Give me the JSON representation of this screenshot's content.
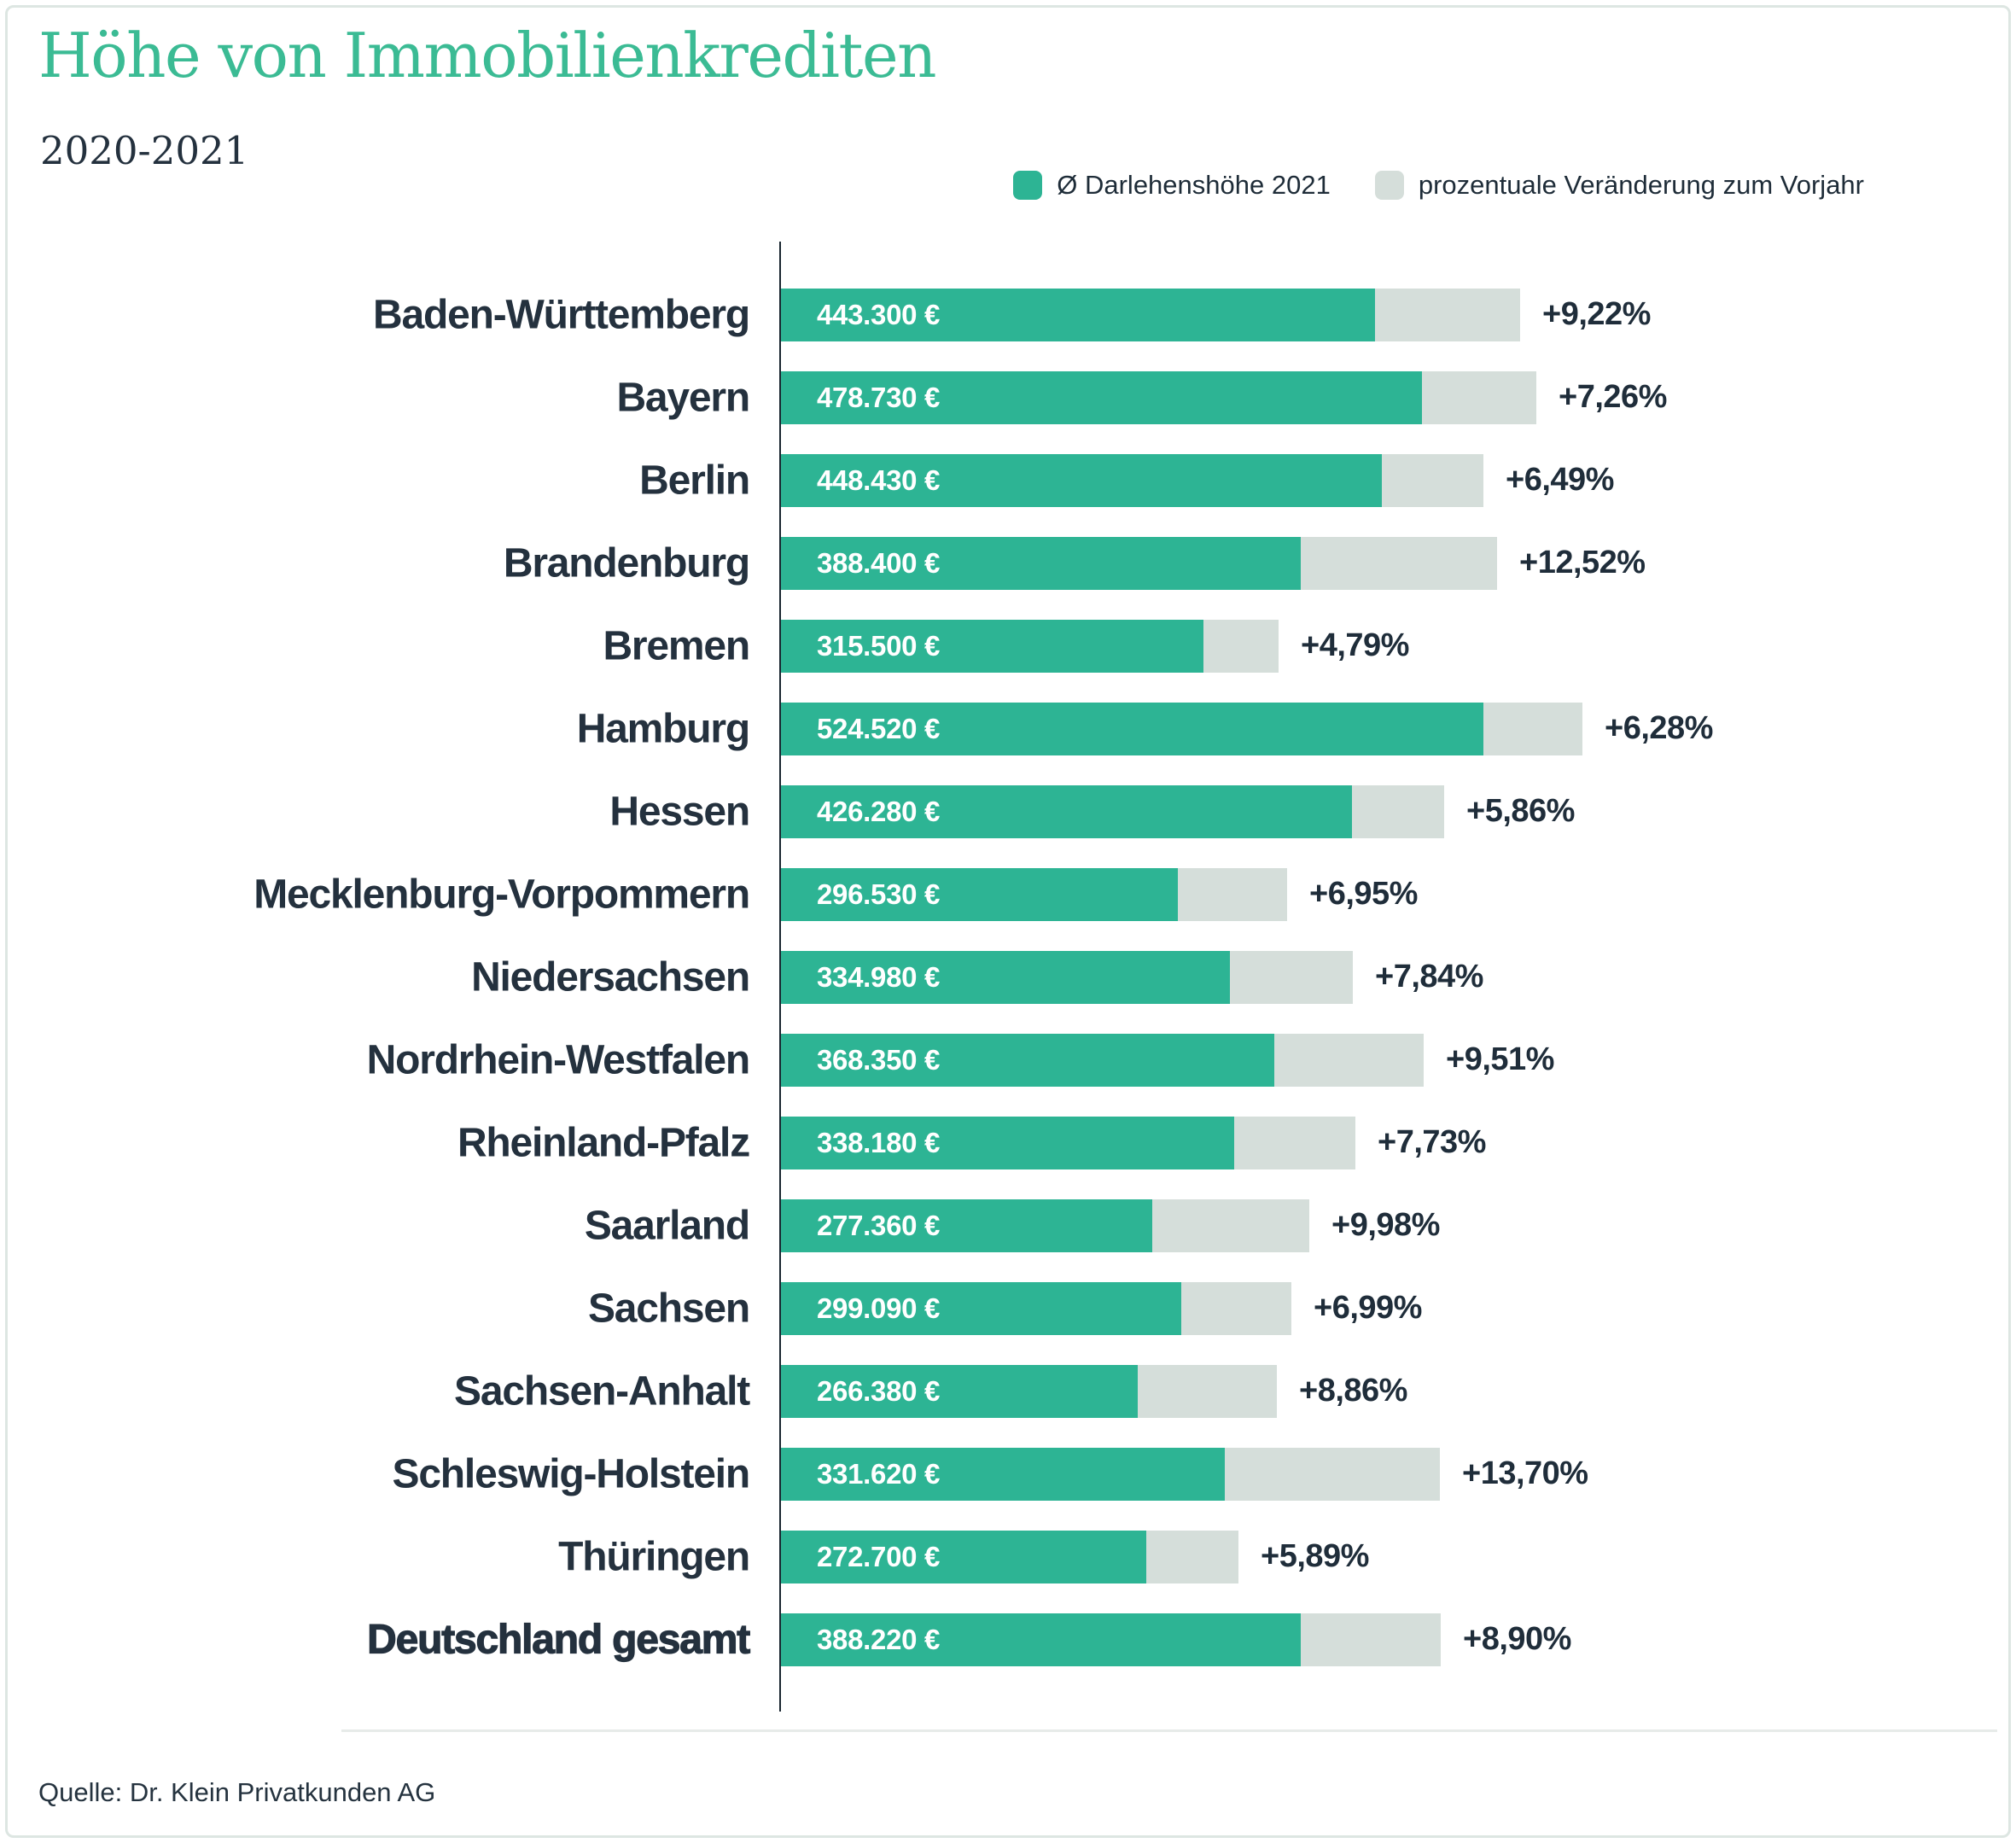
{
  "header": {
    "title": "Höhe von Immobilienkrediten",
    "subtitle": "2020-2021"
  },
  "legend": {
    "items": [
      {
        "label": "Ø Darlehenshöhe 2021",
        "color": "#2DB494"
      },
      {
        "label": "prozentuale Veränderung zum Vorjahr",
        "color": "#D5DEDA"
      }
    ]
  },
  "chart_data": {
    "type": "bar",
    "orientation": "horizontal",
    "title": "Höhe von Immobilienkrediten",
    "subtitle": "2020-2021",
    "legend_position": "top-right",
    "grid": false,
    "categories": [
      "Baden-Württemberg",
      "Bayern",
      "Berlin",
      "Brandenburg",
      "Bremen",
      "Hamburg",
      "Hessen",
      "Mecklenburg-Vorpommern",
      "Niedersachsen",
      "Nordrhein-Westfalen",
      "Rheinland-Pfalz",
      "Saarland",
      "Sachsen",
      "Sachsen-Anhalt",
      "Schleswig-Holstein",
      "Thüringen",
      "Deutschland gesamt"
    ],
    "series": [
      {
        "name": "Ø Darlehenshöhe 2021",
        "unit": "EUR",
        "values": [
          443300,
          478730,
          448430,
          388400,
          315500,
          524520,
          426280,
          296530,
          334980,
          368350,
          338180,
          277360,
          299090,
          266380,
          331620,
          272700,
          388220
        ]
      },
      {
        "name": "prozentuale Veränderung zum Vorjahr",
        "unit": "percent",
        "values": [
          9.22,
          7.26,
          6.49,
          12.52,
          4.79,
          6.28,
          5.86,
          6.95,
          7.84,
          9.51,
          7.73,
          9.98,
          6.99,
          8.86,
          13.7,
          5.89,
          8.9
        ]
      }
    ],
    "value_labels": [
      "443.300 €",
      "478.730 €",
      "448.430 €",
      "388.400 €",
      "315.500 €",
      "524.520 €",
      "426.280 €",
      "296.530 €",
      "334.980 €",
      "368.350 €",
      "338.180 €",
      "277.360 €",
      "299.090 €",
      "266.380 €",
      "331.620 €",
      "272.700 €",
      "388.220 €"
    ],
    "change_labels": [
      "+9,22%",
      "+7,26%",
      "+6,49%",
      "+12,52%",
      "+4,79%",
      "+6,28%",
      "+5,86%",
      "+6,95%",
      "+7,84%",
      "+9,51%",
      "+7,73%",
      "+9,98%",
      "+6,99%",
      "+8,86%",
      "+13,70%",
      "+5,89%",
      "+8,90%"
    ],
    "bold_category": "Deutschland gesamt"
  },
  "footer": {
    "source": "Quelle: Dr. Klein Privatkunden AG"
  },
  "colors": {
    "bar_green": "#2DB494",
    "bar_gray": "#D5DEDA",
    "title_green": "#3BBB94",
    "text_dark": "#24313E"
  }
}
